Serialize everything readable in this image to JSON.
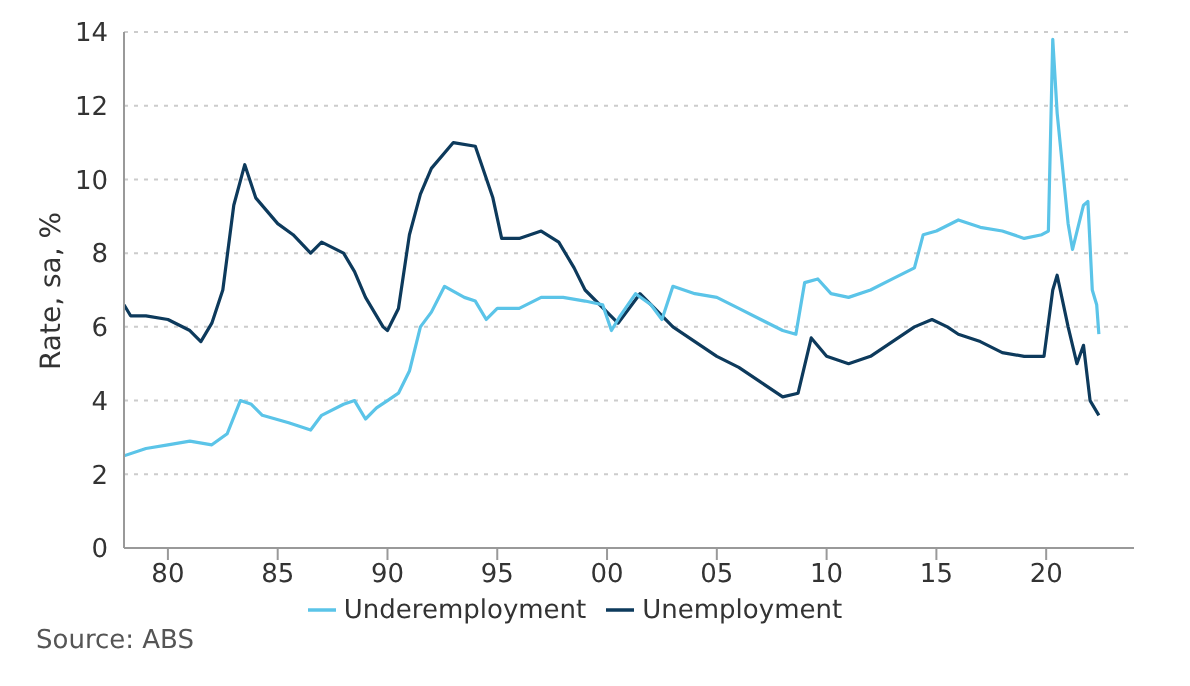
{
  "chart_data": {
    "type": "line",
    "ylabel": "Rate, sa, %",
    "xlim": [
      1978,
      2024
    ],
    "ylim": [
      0,
      14
    ],
    "xticks": [
      {
        "value": 1980,
        "label": "80"
      },
      {
        "value": 1985,
        "label": "85"
      },
      {
        "value": 1990,
        "label": "90"
      },
      {
        "value": 1995,
        "label": "95"
      },
      {
        "value": 2000,
        "label": "00"
      },
      {
        "value": 2005,
        "label": "05"
      },
      {
        "value": 2010,
        "label": "10"
      },
      {
        "value": 2015,
        "label": "15"
      },
      {
        "value": 2020,
        "label": "20"
      }
    ],
    "yticks": [
      0,
      2,
      4,
      6,
      8,
      10,
      12,
      14
    ],
    "grid": "y",
    "legend": "bottom",
    "line_style": "solid",
    "marker": "none",
    "series": [
      {
        "name": "Unemployment",
        "color": "#0d3a5c",
        "x": [
          1978,
          1978.3,
          1979,
          1980,
          1981,
          1981.5,
          1982,
          1982.5,
          1983,
          1983.5,
          1984,
          1985,
          1985.7,
          1986.5,
          1987,
          1988,
          1988.5,
          1989,
          1989.8,
          1990,
          1990.5,
          1991,
          1991.5,
          1992,
          1993,
          1994,
          1994.8,
          1995.2,
          1996,
          1997,
          1997.8,
          1998.5,
          1999,
          2000,
          2000.5,
          2001,
          2001.5,
          2002,
          2003,
          2004,
          2005,
          2006,
          2007,
          2008,
          2008.7,
          2009.3,
          2010,
          2011,
          2012,
          2013,
          2014,
          2014.8,
          2015.5,
          2016,
          2017,
          2018,
          2019,
          2019.9,
          2020.3,
          2020.5,
          2021,
          2021.4,
          2021.7,
          2022,
          2022.4
        ],
        "values": [
          6.6,
          6.3,
          6.3,
          6.2,
          5.9,
          5.6,
          6.1,
          7.0,
          9.3,
          10.4,
          9.5,
          8.8,
          8.5,
          8.0,
          8.3,
          8.0,
          7.5,
          6.8,
          6.0,
          5.9,
          6.5,
          8.5,
          9.6,
          10.3,
          11.0,
          10.9,
          9.5,
          8.4,
          8.4,
          8.6,
          8.3,
          7.6,
          7.0,
          6.4,
          6.1,
          6.5,
          6.9,
          6.6,
          6.0,
          5.6,
          5.2,
          4.9,
          4.5,
          4.1,
          4.2,
          5.7,
          5.2,
          5.0,
          5.2,
          5.6,
          6.0,
          6.2,
          6.0,
          5.8,
          5.6,
          5.3,
          5.2,
          5.2,
          7.0,
          7.4,
          6.0,
          5.0,
          5.5,
          4.0,
          3.6
        ]
      },
      {
        "name": "Underemployment",
        "color": "#5bc4e8",
        "x": [
          1978,
          1979,
          1980,
          1981,
          1982,
          1982.7,
          1983.3,
          1983.8,
          1984.3,
          1985.5,
          1986.5,
          1987,
          1988,
          1988.5,
          1989,
          1989.5,
          1990,
          1990.5,
          1991,
          1991.5,
          1992,
          1992.6,
          1993.5,
          1994,
          1994.5,
          1995,
          1996,
          1997,
          1998,
          1999,
          1999.8,
          2000.2,
          2000.6,
          2001.3,
          2002,
          2002.5,
          2003,
          2004,
          2005,
          2006,
          2007,
          2008,
          2008.6,
          2009,
          2009.6,
          2010.2,
          2011,
          2012,
          2013,
          2014,
          2014.4,
          2015,
          2016,
          2017,
          2018,
          2019,
          2019.8,
          2020.1,
          2020.3,
          2020.5,
          2021,
          2021.2,
          2021.7,
          2021.9,
          2022.1,
          2022.3,
          2022.4
        ],
        "values": [
          2.5,
          2.7,
          2.8,
          2.9,
          2.8,
          3.1,
          4.0,
          3.9,
          3.6,
          3.4,
          3.2,
          3.6,
          3.9,
          4.0,
          3.5,
          3.8,
          4.0,
          4.2,
          4.8,
          6.0,
          6.4,
          7.1,
          6.8,
          6.7,
          6.2,
          6.5,
          6.5,
          6.8,
          6.8,
          6.7,
          6.6,
          5.9,
          6.3,
          6.9,
          6.6,
          6.2,
          7.1,
          6.9,
          6.8,
          6.5,
          6.2,
          5.9,
          5.8,
          7.2,
          7.3,
          6.9,
          6.8,
          7.0,
          7.3,
          7.6,
          8.5,
          8.6,
          8.9,
          8.7,
          8.6,
          8.4,
          8.5,
          8.6,
          13.8,
          11.8,
          8.8,
          8.1,
          9.3,
          9.4,
          7.0,
          6.6,
          5.8
        ]
      }
    ],
    "annotations": [
      "Source: ABS"
    ]
  }
}
